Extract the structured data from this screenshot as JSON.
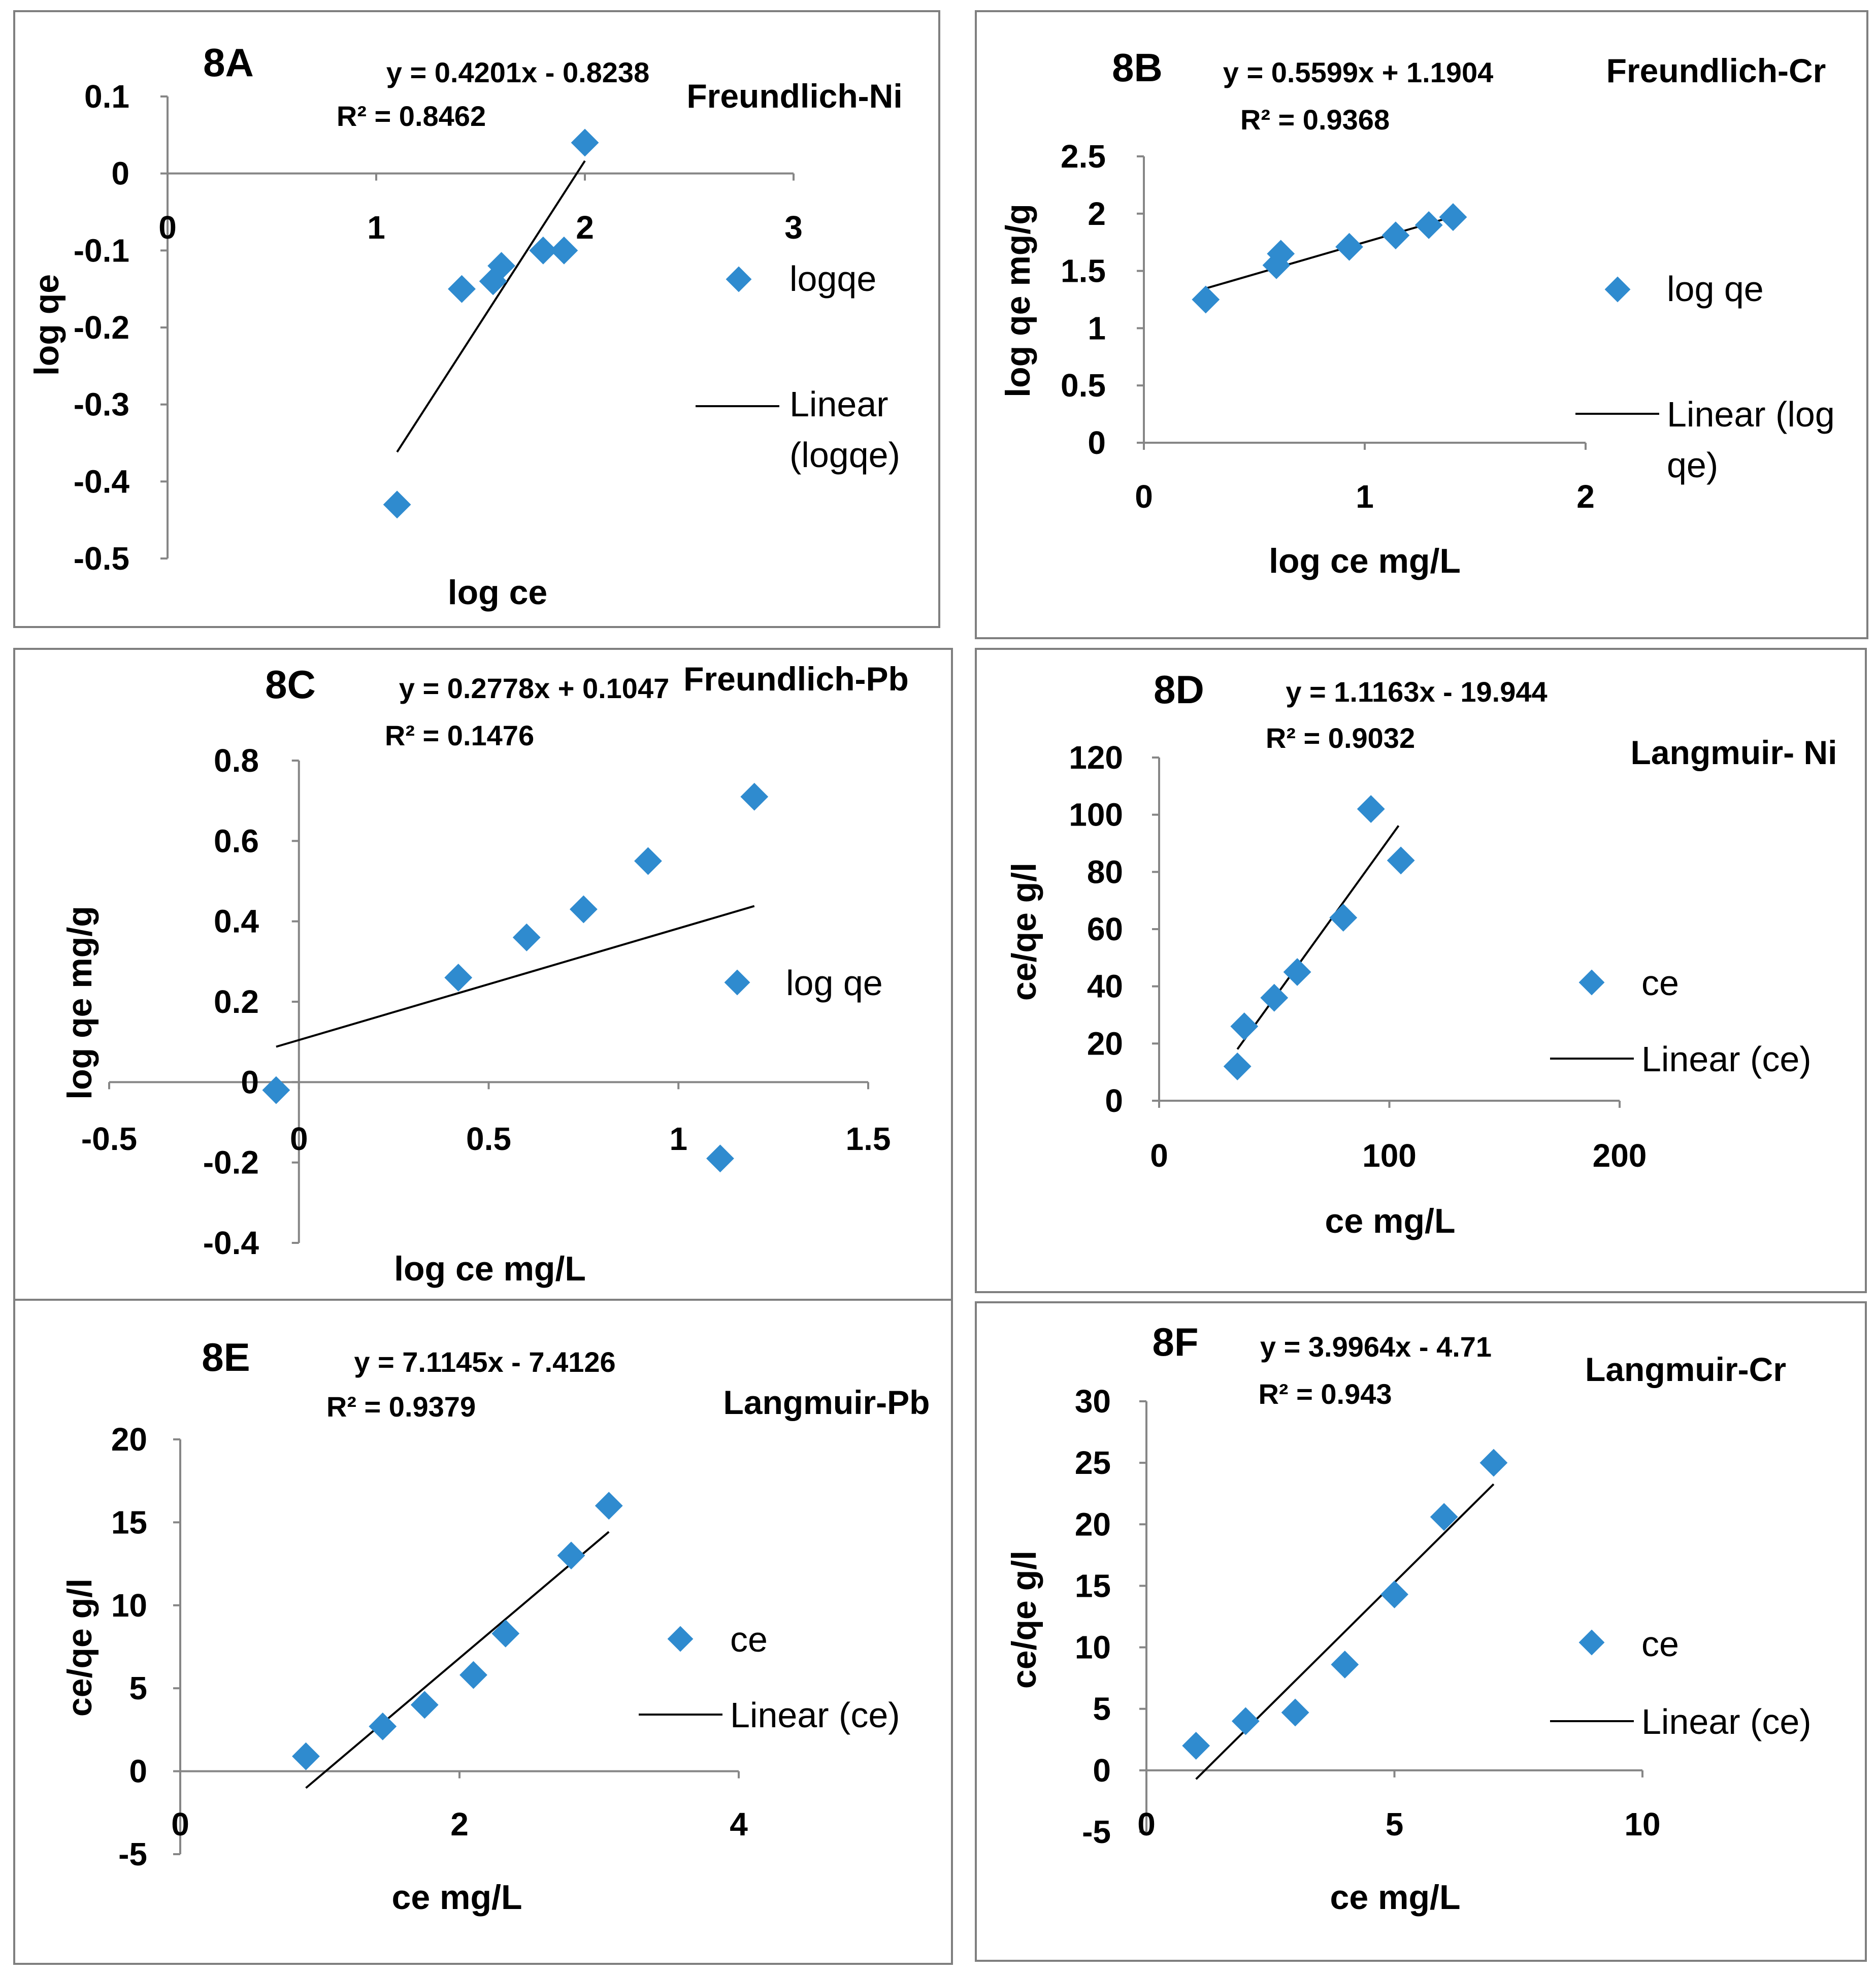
{
  "colors": {
    "marker": "#2f8bcf",
    "axis": "#868686",
    "frame": "#7f7f7f",
    "trend": "#000000"
  },
  "chart_data": [
    {
      "id": "8A",
      "type": "scatter",
      "panel_label": "8A",
      "title": "Freundlich-Ni",
      "equation": "y = 0.4201x - 0.8238",
      "r2": "R² = 0.8462",
      "xlabel": "log ce",
      "ylabel": "log qe",
      "xlim": [
        0,
        3
      ],
      "ylim": [
        -0.5,
        0.1
      ],
      "x_ticks": [
        "0",
        "1",
        "2",
        "3"
      ],
      "y_ticks": [
        "0.1",
        "0",
        "-0.1",
        "-0.2",
        "-0.3",
        "-0.4",
        "-0.5"
      ],
      "x": [
        1.1,
        1.41,
        1.56,
        1.6,
        1.8,
        1.9,
        2.0
      ],
      "y": [
        -0.43,
        -0.15,
        -0.14,
        -0.12,
        -0.1,
        -0.1,
        0.04
      ],
      "trendline": {
        "slope": 0.4201,
        "intercept": -0.8238,
        "x_range": [
          1.1,
          2.0
        ]
      },
      "legend": {
        "series": "logqe",
        "linear": "Linear (logqe)"
      }
    },
    {
      "id": "8B",
      "type": "scatter",
      "panel_label": "8B",
      "title": "Freundlich-Cr",
      "equation": "y = 0.5599x + 1.1904",
      "r2": "R² = 0.9368",
      "xlabel": "log ce mg/L",
      "ylabel": "log qe mg/g",
      "xlim": [
        0,
        2
      ],
      "ylim": [
        0,
        2.5
      ],
      "x_ticks": [
        "0",
        "1",
        "2"
      ],
      "y_ticks": [
        "2.5",
        "2",
        "1.5",
        "1",
        "0.5",
        "0"
      ],
      "x": [
        0.28,
        0.6,
        0.62,
        0.93,
        1.14,
        1.29,
        1.4
      ],
      "y": [
        1.25,
        1.55,
        1.65,
        1.71,
        1.81,
        1.9,
        1.97
      ],
      "trendline": {
        "slope": 0.5599,
        "intercept": 1.1904,
        "x_range": [
          0.28,
          1.4
        ]
      },
      "legend": {
        "series": "log qe",
        "linear": "Linear (log qe)"
      }
    },
    {
      "id": "8C",
      "type": "scatter",
      "panel_label": "8C",
      "title": "Freundlich-Pb",
      "equation": "y = 0.2778x + 0.1047",
      "r2": "R² = 0.1476",
      "xlabel": "log ce mg/L",
      "ylabel": "log qe mg/g",
      "xlim": [
        -0.5,
        1.5
      ],
      "ylim": [
        -0.4,
        0.8
      ],
      "x_ticks": [
        "-0.5",
        "0",
        "0.5",
        "1",
        "1.5"
      ],
      "y_ticks": [
        "0.8",
        "0.6",
        "0.4",
        "0.2",
        "0",
        "-0.2",
        "-0.4"
      ],
      "x": [
        -0.06,
        0.42,
        0.6,
        0.75,
        0.92,
        1.11,
        1.2
      ],
      "y": [
        -0.02,
        0.26,
        0.36,
        0.43,
        0.55,
        -0.19,
        0.71
      ],
      "trendline": {
        "slope": 0.2778,
        "intercept": 0.1047,
        "x_range": [
          -0.06,
          1.2
        ]
      },
      "legend": {
        "series": "log qe",
        "linear": ""
      }
    },
    {
      "id": "8D",
      "type": "scatter",
      "panel_label": "8D",
      "title": "Langmuir- Ni",
      "equation": "y = 1.1163x - 19.944",
      "r2": "R² = 0.9032",
      "xlabel": "ce mg/L",
      "ylabel": "ce/qe  g/l",
      "xlim": [
        0,
        200
      ],
      "ylim": [
        0,
        120
      ],
      "x_ticks": [
        "0",
        "100",
        "200"
      ],
      "y_ticks": [
        "120",
        "100",
        "80",
        "60",
        "40",
        "20",
        "0"
      ],
      "x": [
        34,
        37,
        50,
        60,
        80,
        92,
        105
      ],
      "y": [
        12,
        26,
        36,
        45,
        64,
        102,
        84
      ],
      "trendline": {
        "slope": 1.1163,
        "intercept": -19.944,
        "x_range": [
          34,
          104
        ]
      },
      "legend": {
        "series": "ce",
        "linear": "Linear (ce)"
      }
    },
    {
      "id": "8E",
      "type": "scatter",
      "panel_label": "8E",
      "title": "Langmuir-Pb",
      "equation": "y = 7.1145x - 7.4126",
      "r2": "R² = 0.9379",
      "xlabel": "ce mg/L",
      "ylabel": "ce/qe g/l",
      "xlim": [
        0,
        4
      ],
      "ylim": [
        -5,
        20
      ],
      "x_ticks": [
        "0",
        "2",
        "4"
      ],
      "y_ticks": [
        "20",
        "15",
        "10",
        "5",
        "0",
        "-5"
      ],
      "x": [
        0.9,
        1.45,
        1.75,
        2.1,
        2.33,
        2.8,
        3.07
      ],
      "y": [
        0.9,
        2.7,
        4.0,
        5.8,
        8.3,
        13.0,
        16.0
      ],
      "trendline": {
        "slope": 7.1145,
        "intercept": -7.4126,
        "x_range": [
          0.9,
          3.07
        ]
      },
      "legend": {
        "series": "ce",
        "linear": "Linear (ce)"
      }
    },
    {
      "id": "8F",
      "type": "scatter",
      "panel_label": "8F",
      "title": "Langmuir-Cr",
      "equation": "y = 3.9964x - 4.71",
      "r2": "R² = 0.943",
      "xlabel": "ce mg/L",
      "ylabel": "ce/qe  g/l",
      "xlim": [
        0,
        10
      ],
      "ylim": [
        -5,
        30
      ],
      "x_ticks": [
        "0",
        "5",
        "10"
      ],
      "y_ticks": [
        "30",
        "25",
        "20",
        "15",
        "10",
        "5",
        "0",
        "-5"
      ],
      "x": [
        1,
        2,
        3,
        4,
        5,
        6,
        7
      ],
      "y": [
        2.0,
        4.0,
        4.7,
        8.6,
        14.3,
        20.6,
        25.0
      ],
      "trendline": {
        "slope": 3.9964,
        "intercept": -4.71,
        "x_range": [
          1,
          7
        ]
      },
      "legend": {
        "series": "ce",
        "linear": "Linear (ce)"
      }
    }
  ]
}
